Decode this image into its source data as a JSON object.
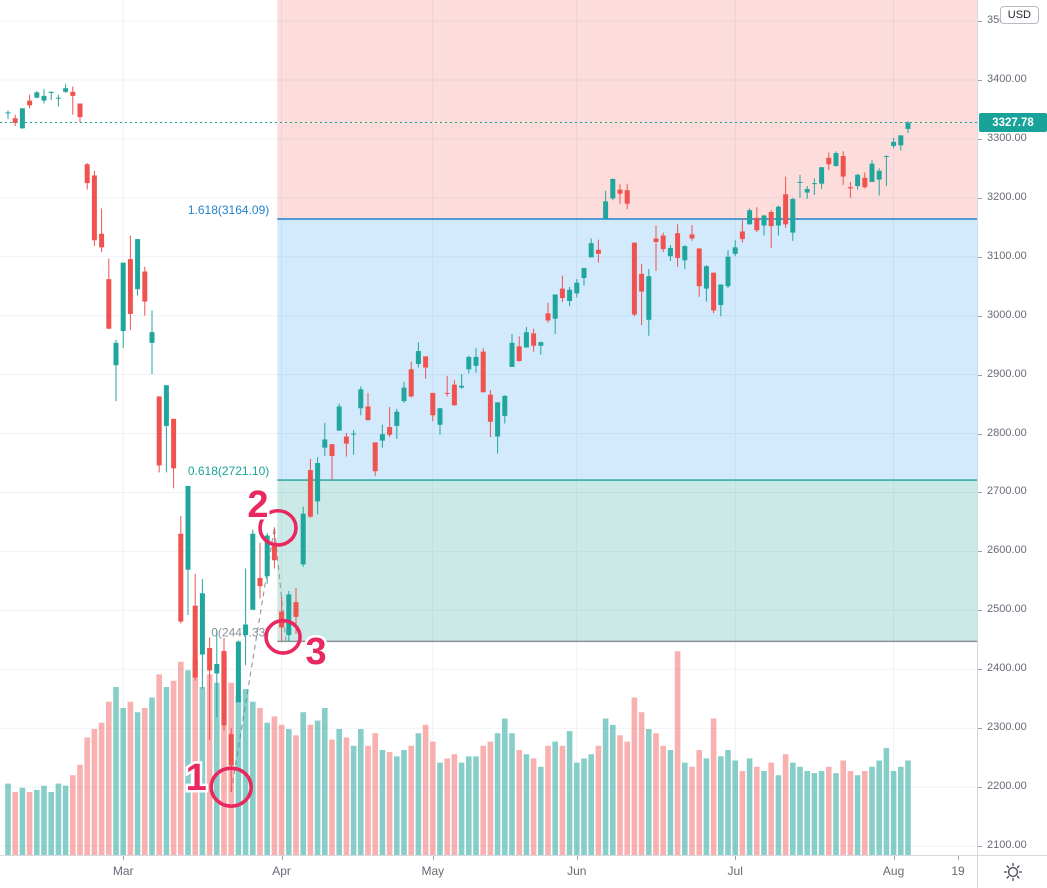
{
  "price_axis": {
    "currency": "USD",
    "last_price": 3327.78,
    "last_price_label": "3327.78",
    "badge_color": "#17a29a",
    "ticks": [
      {
        "value": 3500,
        "label": "3500.00"
      },
      {
        "value": 3400,
        "label": "3400.00"
      },
      {
        "value": 3300,
        "label": "3300.00"
      },
      {
        "value": 3200,
        "label": "3200.00"
      },
      {
        "value": 3100,
        "label": "3100.00"
      },
      {
        "value": 3000,
        "label": "3000.00"
      },
      {
        "value": 2900,
        "label": "2900.00"
      },
      {
        "value": 2800,
        "label": "2800.00"
      },
      {
        "value": 2700,
        "label": "2700.00"
      },
      {
        "value": 2600,
        "label": "2600.00"
      },
      {
        "value": 2500,
        "label": "2500.00"
      },
      {
        "value": 2400,
        "label": "2400.00"
      },
      {
        "value": 2300,
        "label": "2300.00"
      },
      {
        "value": 2200,
        "label": "2200.00"
      },
      {
        "value": 2100,
        "label": "2100.00"
      }
    ]
  },
  "time_axis": {
    "months": [
      {
        "label": "Mar",
        "candle_index": 16
      },
      {
        "label": "Apr",
        "candle_index": 38
      },
      {
        "label": "May",
        "candle_index": 59
      },
      {
        "label": "Jun",
        "candle_index": 79
      },
      {
        "label": "Jul",
        "candle_index": 101
      },
      {
        "label": "Aug",
        "candle_index": 123
      }
    ],
    "edge_label": "19"
  },
  "fib": {
    "levels": [
      {
        "ratio": "1.618",
        "value": 3164.09,
        "label": "1.618(3164.09)",
        "color": "#2282cc"
      },
      {
        "ratio": "0.618",
        "value": 2721.1,
        "label": "0.618(2721.10)",
        "color": "#1ca29a"
      },
      {
        "ratio": "0",
        "value": 2447.33,
        "label": "0(2447.33)",
        "color": "#8b8f99"
      }
    ],
    "zones": [
      {
        "from": 3536,
        "to": 3164.09,
        "fill": "rgba(239,83,80,0.20)"
      },
      {
        "from": 3164.09,
        "to": 2721.1,
        "fill": "rgba(33,150,243,0.20)"
      },
      {
        "from": 2721.1,
        "to": 2447.33,
        "fill": "rgba(38,166,154,0.24)"
      }
    ],
    "points": [
      {
        "candle_index": 31,
        "price": 2192
      },
      {
        "candle_index": 37,
        "price": 2641
      },
      {
        "candle_index": 38.6,
        "price": 2448
      }
    ]
  },
  "annotations": {
    "color": "#e8285f",
    "circles": [
      {
        "num": "1",
        "candle_index": 31,
        "price": 2200,
        "r": 20,
        "num_dx": -35,
        "num_dy": -9
      },
      {
        "num": "2",
        "candle_index": 37.5,
        "price": 2640,
        "r": 18,
        "num_dx": -20,
        "num_dy": -23
      },
      {
        "num": "3",
        "candle_index": 38.2,
        "price": 2455,
        "r": 17,
        "num_dx": 33,
        "num_dy": 15
      }
    ]
  },
  "colors": {
    "candle_up": "#21a69e",
    "candle_down": "#f0534f",
    "vol_up": "rgba(38,166,154,0.55)",
    "vol_down": "rgba(239,83,80,0.45)",
    "grid": "#eef1f7",
    "connector": "#9a9ea8",
    "last_price": "#17a29a",
    "axis_text": "#676b76"
  },
  "chart_data": {
    "type": "candlestick_with_volume",
    "y_axis_range": [
      2085,
      3536
    ],
    "grid": true,
    "legend": "none",
    "candles": [
      [
        3344,
        3348,
        3334,
        3345
      ],
      [
        3335,
        3341,
        3322,
        3327
      ],
      [
        3318,
        3352,
        3317,
        3352
      ],
      [
        3365,
        3375,
        3352,
        3357
      ],
      [
        3370,
        3381,
        3369,
        3379
      ],
      [
        3365,
        3385,
        3360,
        3373
      ],
      [
        3378,
        3380,
        3366,
        3380
      ],
      [
        3369,
        3375,
        3355,
        3370
      ],
      [
        3380,
        3393,
        3378,
        3386
      ],
      [
        3380,
        3389,
        3341,
        3373
      ],
      [
        3360,
        3360,
        3328,
        3337
      ],
      [
        3257,
        3259,
        3214,
        3225
      ],
      [
        3238,
        3246,
        3118,
        3128
      ],
      [
        3139,
        3182,
        3108,
        3116
      ],
      [
        3062,
        3097,
        2977,
        2978
      ],
      [
        2916,
        2959,
        2855,
        2954
      ],
      [
        2974,
        3090,
        2945,
        3090
      ],
      [
        3096,
        3136,
        2976,
        3003
      ],
      [
        3045,
        3130,
        3034,
        3130
      ],
      [
        3075,
        3083,
        3000,
        3024
      ],
      [
        2954,
        3009,
        2901,
        2972
      ],
      [
        2863,
        2863,
        2734,
        2746
      ],
      [
        2813,
        2882,
        2734,
        2882
      ],
      [
        2825,
        2825,
        2707,
        2741
      ],
      [
        2630,
        2660,
        2478,
        2481
      ],
      [
        2569,
        2711,
        2492,
        2711
      ],
      [
        2508,
        2562,
        2381,
        2386
      ],
      [
        2425,
        2553,
        2367,
        2529
      ],
      [
        2436,
        2454,
        2280,
        2398
      ],
      [
        2393,
        2466,
        2319,
        2409
      ],
      [
        2431,
        2453,
        2296,
        2305
      ],
      [
        2290,
        2300,
        2192,
        2237
      ],
      [
        2344,
        2449,
        2344,
        2447
      ],
      [
        2458,
        2571,
        2407,
        2476
      ],
      [
        2501,
        2637,
        2501,
        2630
      ],
      [
        2555,
        2615,
        2520,
        2541
      ],
      [
        2558,
        2631,
        2545,
        2627
      ],
      [
        2615,
        2641,
        2571,
        2585
      ],
      [
        2498,
        2523,
        2448,
        2471
      ],
      [
        2458,
        2533,
        2448,
        2527
      ],
      [
        2514,
        2538,
        2460,
        2489
      ],
      [
        2578,
        2676,
        2574,
        2664
      ],
      [
        2738,
        2757,
        2657,
        2659
      ],
      [
        2685,
        2760,
        2663,
        2750
      ],
      [
        2776,
        2818,
        2762,
        2790
      ],
      [
        2782,
        2782,
        2721,
        2762
      ],
      [
        2805,
        2851,
        2805,
        2846
      ],
      [
        2795,
        2801,
        2761,
        2783
      ],
      [
        2799,
        2806,
        2764,
        2800
      ],
      [
        2843,
        2880,
        2831,
        2875
      ],
      [
        2846,
        2869,
        2821,
        2823
      ],
      [
        2785,
        2785,
        2728,
        2736
      ],
      [
        2788,
        2815,
        2776,
        2799
      ],
      [
        2811,
        2845,
        2794,
        2798
      ],
      [
        2813,
        2842,
        2791,
        2837
      ],
      [
        2855,
        2888,
        2852,
        2878
      ],
      [
        2909,
        2922,
        2861,
        2863
      ],
      [
        2918,
        2955,
        2912,
        2940
      ],
      [
        2931,
        2931,
        2893,
        2912
      ],
      [
        2869,
        2869,
        2821,
        2831
      ],
      [
        2815,
        2844,
        2798,
        2843
      ],
      [
        2869,
        2898,
        2863,
        2868
      ],
      [
        2883,
        2891,
        2847,
        2848
      ],
      [
        2878,
        2901,
        2876,
        2881
      ],
      [
        2909,
        2932,
        2902,
        2930
      ],
      [
        2915,
        2945,
        2903,
        2930
      ],
      [
        2939,
        2945,
        2870,
        2870
      ],
      [
        2866,
        2874,
        2794,
        2820
      ],
      [
        2795,
        2853,
        2766,
        2853
      ],
      [
        2830,
        2865,
        2817,
        2864
      ],
      [
        2913,
        2969,
        2913,
        2954
      ],
      [
        2948,
        2965,
        2922,
        2923
      ],
      [
        2946,
        2981,
        2946,
        2972
      ],
      [
        2970,
        2978,
        2939,
        2949
      ],
      [
        2949,
        2956,
        2934,
        2955
      ],
      [
        3004,
        3022,
        2988,
        2992
      ],
      [
        2995,
        3036,
        2969,
        3036
      ],
      [
        3046,
        3068,
        3023,
        3030
      ],
      [
        3025,
        3049,
        3016,
        3044
      ],
      [
        3038,
        3062,
        3031,
        3056
      ],
      [
        3064,
        3081,
        3051,
        3081
      ],
      [
        3099,
        3131,
        3099,
        3123
      ],
      [
        3112,
        3129,
        3090,
        3105
      ],
      [
        3164,
        3212,
        3164,
        3194
      ],
      [
        3199,
        3233,
        3196,
        3232
      ],
      [
        3214,
        3223,
        3190,
        3207
      ],
      [
        3213,
        3224,
        3181,
        3190
      ],
      [
        3124,
        3124,
        2999,
        3002
      ],
      [
        3071,
        3088,
        2984,
        3041
      ],
      [
        2993,
        3079,
        2966,
        3067
      ],
      [
        3131,
        3153,
        3076,
        3125
      ],
      [
        3136,
        3141,
        3108,
        3113
      ],
      [
        3101,
        3120,
        3093,
        3115
      ],
      [
        3140,
        3155,
        3083,
        3098
      ],
      [
        3094,
        3120,
        3079,
        3118
      ],
      [
        3138,
        3154,
        3127,
        3131
      ],
      [
        3114,
        3115,
        3032,
        3050
      ],
      [
        3046,
        3086,
        3024,
        3084
      ],
      [
        3073,
        3073,
        3004,
        3009
      ],
      [
        3018,
        3053,
        2999,
        3053
      ],
      [
        3050,
        3111,
        3047,
        3100
      ],
      [
        3105,
        3128,
        3101,
        3116
      ],
      [
        3143,
        3165,
        3124,
        3130
      ],
      [
        3155,
        3182,
        3155,
        3179
      ],
      [
        3166,
        3184,
        3142,
        3145
      ],
      [
        3153,
        3171,
        3136,
        3170
      ],
      [
        3176,
        3179,
        3115,
        3152
      ],
      [
        3153,
        3187,
        3136,
        3185
      ],
      [
        3206,
        3236,
        3149,
        3155
      ],
      [
        3141,
        3200,
        3127,
        3198
      ],
      [
        3226,
        3239,
        3200,
        3227
      ],
      [
        3209,
        3220,
        3198,
        3215
      ],
      [
        3224,
        3233,
        3205,
        3225
      ],
      [
        3224,
        3252,
        3215,
        3252
      ],
      [
        3268,
        3277,
        3247,
        3257
      ],
      [
        3254,
        3279,
        3253,
        3276
      ],
      [
        3271,
        3279,
        3222,
        3236
      ],
      [
        3218,
        3227,
        3200,
        3216
      ],
      [
        3220,
        3241,
        3214,
        3239
      ],
      [
        3234,
        3243,
        3216,
        3218
      ],
      [
        3227,
        3264,
        3227,
        3258
      ],
      [
        3231,
        3250,
        3204,
        3246
      ],
      [
        3270,
        3272,
        3220,
        3271
      ],
      [
        3288,
        3302,
        3284,
        3295
      ],
      [
        3289,
        3306,
        3280,
        3306
      ],
      [
        3317,
        3330,
        3310,
        3327.78
      ]
    ],
    "volumes": [
      0.34,
      0.3,
      0.32,
      0.3,
      0.31,
      0.33,
      0.3,
      0.34,
      0.33,
      0.38,
      0.43,
      0.56,
      0.6,
      0.63,
      0.73,
      0.8,
      0.7,
      0.73,
      0.68,
      0.7,
      0.75,
      0.86,
      0.8,
      0.83,
      0.92,
      0.88,
      0.93,
      0.8,
      0.86,
      0.82,
      0.96,
      0.82,
      0.76,
      0.79,
      0.73,
      0.7,
      0.63,
      0.66,
      0.62,
      0.6,
      0.57,
      0.68,
      0.62,
      0.64,
      0.7,
      0.55,
      0.6,
      0.56,
      0.52,
      0.6,
      0.52,
      0.58,
      0.5,
      0.49,
      0.47,
      0.5,
      0.52,
      0.58,
      0.62,
      0.54,
      0.44,
      0.46,
      0.48,
      0.44,
      0.47,
      0.47,
      0.52,
      0.54,
      0.58,
      0.65,
      0.58,
      0.5,
      0.48,
      0.46,
      0.42,
      0.52,
      0.54,
      0.52,
      0.59,
      0.44,
      0.46,
      0.48,
      0.52,
      0.65,
      0.62,
      0.57,
      0.54,
      0.75,
      0.68,
      0.6,
      0.58,
      0.52,
      0.5,
      0.97,
      0.44,
      0.42,
      0.5,
      0.46,
      0.65,
      0.47,
      0.5,
      0.45,
      0.4,
      0.46,
      0.42,
      0.4,
      0.44,
      0.38,
      0.48,
      0.44,
      0.42,
      0.4,
      0.39,
      0.4,
      0.42,
      0.39,
      0.45,
      0.4,
      0.38,
      0.4,
      0.42,
      0.45,
      0.51,
      0.4,
      0.42,
      0.45
    ]
  }
}
